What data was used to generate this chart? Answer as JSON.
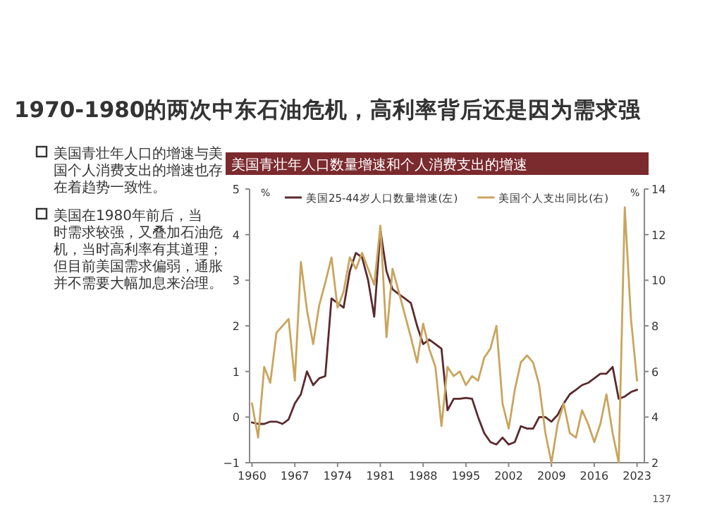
{
  "chart_data": {
    "type": "line",
    "title": "1970-1980的两次中东石油危机，高利率背后还是因为需求强",
    "subtitle": "美国青壮年人口数量增速和个人消费支出的增速",
    "annotations": [
      "美国青壮年人口的增速与美国个人消费支出的增速也存在着趋势一致性。",
      "美国在1980年前后，当时需求较强，又叠加石油危机，当时高利率有其道理；但目前美国需求偏弱，通胀并不需要大幅加息来治理。",
      "137"
    ],
    "x": [
      1960,
      1961,
      1962,
      1963,
      1964,
      1965,
      1966,
      1967,
      1968,
      1969,
      1970,
      1971,
      1972,
      1973,
      1974,
      1975,
      1976,
      1977,
      1978,
      1979,
      1980,
      1981,
      1982,
      1983,
      1984,
      1985,
      1986,
      1987,
      1988,
      1989,
      1990,
      1991,
      1992,
      1993,
      1994,
      1995,
      1996,
      1997,
      1998,
      1999,
      2000,
      2001,
      2002,
      2003,
      2004,
      2005,
      2006,
      2007,
      2008,
      2009,
      2010,
      2011,
      2012,
      2013,
      2014,
      2015,
      2016,
      2017,
      2018,
      2019,
      2020,
      2021,
      2022,
      2023
    ],
    "series": [
      {
        "name": "美国25-44岁人口数量增速(左)",
        "color": "#5a2a2e",
        "values": [
          -0.12,
          -0.15,
          -0.15,
          -0.1,
          -0.1,
          -0.15,
          -0.05,
          0.3,
          0.5,
          1.0,
          0.7,
          0.85,
          0.9,
          2.6,
          2.5,
          2.4,
          3.2,
          3.6,
          3.5,
          3.0,
          2.2,
          4.1,
          3.2,
          2.8,
          2.7,
          2.6,
          2.5,
          2.0,
          1.6,
          1.7,
          1.6,
          1.5,
          0.15,
          0.4,
          0.4,
          0.42,
          0.4,
          0.0,
          -0.35,
          -0.55,
          -0.6,
          -0.45,
          -0.6,
          -0.55,
          -0.2,
          -0.25,
          -0.25,
          0.0,
          0.0,
          -0.1,
          0.05,
          0.3,
          0.5,
          0.6,
          0.7,
          0.75,
          0.85,
          0.95,
          0.95,
          1.1,
          0.4,
          0.45,
          0.55,
          0.6
        ]
      },
      {
        "name": "美国个人支出同比(右)",
        "color": "#c9a55e",
        "axis": "y2",
        "values": [
          4.6,
          3.1,
          6.2,
          5.5,
          7.7,
          8.0,
          8.3,
          5.6,
          10.8,
          8.7,
          7.2,
          8.9,
          9.9,
          11.0,
          8.8,
          9.5,
          11.0,
          10.5,
          11.2,
          10.5,
          9.8,
          12.4,
          7.5,
          10.5,
          9.5,
          8.5,
          7.5,
          6.4,
          8.1,
          7.0,
          6.2,
          3.6,
          6.2,
          5.8,
          6.0,
          5.4,
          5.8,
          5.6,
          6.6,
          7.0,
          8.0,
          4.6,
          3.5,
          5.2,
          6.4,
          6.7,
          6.4,
          5.4,
          3.3,
          2.0,
          3.7,
          4.6,
          3.3,
          3.1,
          4.3,
          3.7,
          2.9,
          3.7,
          5.0,
          3.3,
          2.0,
          13.2,
          8.3,
          5.6
        ]
      }
    ],
    "xlim": [
      1959.6,
      2024.2
    ],
    "xticks": [
      1960,
      1967,
      1974,
      1981,
      1988,
      1995,
      2002,
      2009,
      2016,
      2023
    ],
    "ylim": [
      -1,
      5
    ],
    "yticks": [
      -1,
      0,
      1,
      2,
      3,
      4,
      5
    ],
    "y2lim": [
      2,
      14
    ],
    "y2ticks": [
      2,
      4,
      6,
      8,
      10,
      12,
      14
    ],
    "ylabel": "%",
    "y2label": "%",
    "legend": "top",
    "grid": false
  }
}
